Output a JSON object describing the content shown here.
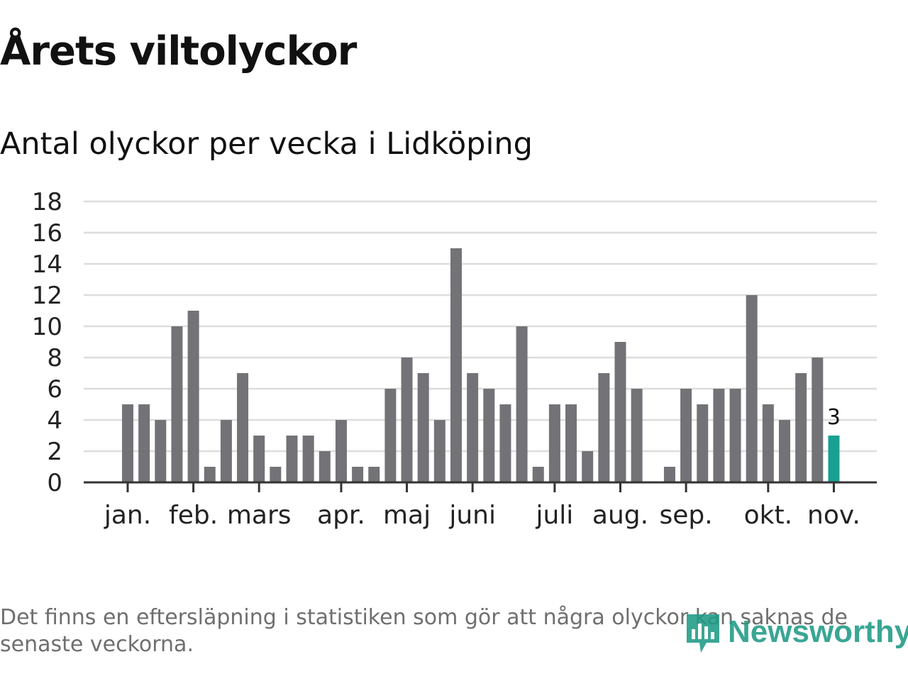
{
  "header": {
    "title": "Årets viltolyckor",
    "subtitle": "Antal olyckor per vecka i Lidköping"
  },
  "chart_data": {
    "type": "bar",
    "title": "Årets viltolyckor",
    "subtitle": "Antal olyckor per vecka i Lidköping",
    "xlabel": "",
    "ylabel": "",
    "ylim": [
      0,
      18
    ],
    "yticks": [
      "0",
      "2",
      "4",
      "6",
      "8",
      "10",
      "12",
      "14",
      "16",
      "18"
    ],
    "grid": true,
    "month_labels": [
      {
        "label": "jan.",
        "week": 1
      },
      {
        "label": "feb.",
        "week": 5
      },
      {
        "label": "mars",
        "week": 9
      },
      {
        "label": "apr.",
        "week": 14
      },
      {
        "label": "maj",
        "week": 18
      },
      {
        "label": "juni",
        "week": 22
      },
      {
        "label": "juli",
        "week": 27
      },
      {
        "label": "aug.",
        "week": 31
      },
      {
        "label": "sep.",
        "week": 35
      },
      {
        "label": "okt.",
        "week": 40
      },
      {
        "label": "nov.",
        "week": 44
      }
    ],
    "weeks": [
      1,
      2,
      3,
      4,
      5,
      6,
      7,
      8,
      9,
      10,
      11,
      12,
      13,
      14,
      15,
      16,
      17,
      18,
      19,
      20,
      21,
      22,
      23,
      24,
      25,
      26,
      27,
      28,
      29,
      30,
      31,
      32,
      33,
      34,
      35,
      36,
      37,
      38,
      39,
      40,
      41,
      42,
      43,
      44
    ],
    "values": [
      5,
      5,
      4,
      10,
      11,
      1,
      4,
      7,
      3,
      1,
      3,
      3,
      2,
      4,
      1,
      1,
      6,
      8,
      7,
      4,
      15,
      7,
      6,
      5,
      10,
      1,
      5,
      5,
      2,
      7,
      9,
      6,
      0,
      1,
      6,
      5,
      6,
      6,
      12,
      5,
      4,
      7,
      8,
      3
    ],
    "highlight": {
      "week": 44,
      "value": 3,
      "label": "3"
    },
    "colors": {
      "bar": "#737277",
      "highlight": "#19a092",
      "grid": "#dddddd",
      "axis": "#333333"
    }
  },
  "footer": {
    "note": "Det finns en eftersläpning i statistiken som gör att några olyckor kan saknas de senaste veckorna.",
    "brand": "Newsworthy",
    "brand_icon": "newsworthy-logo-icon"
  }
}
